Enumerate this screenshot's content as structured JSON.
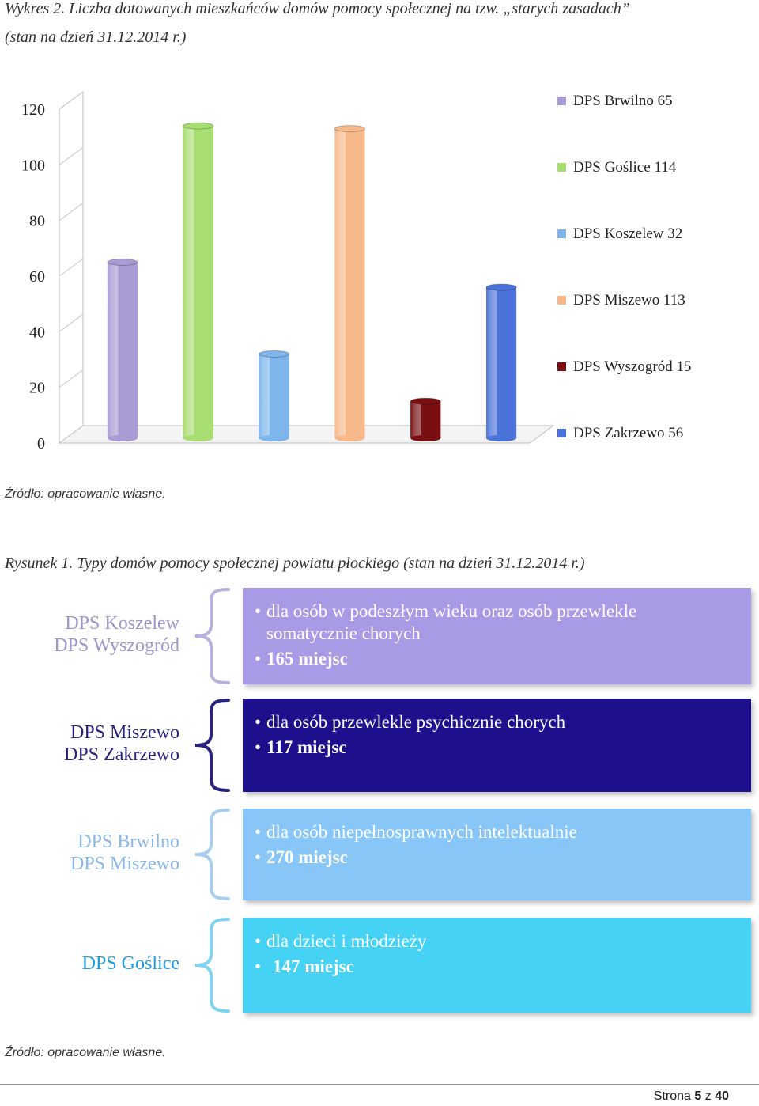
{
  "caption_chart": {
    "line1": "Wykres 2. Liczba dotowanych mieszkańców domów pomocy społecznej na tzw. „starych zasadach”",
    "line2": "(stan na dzień 31.12.2014 r.)"
  },
  "chart_data": {
    "type": "bar",
    "title": "",
    "categories": [
      "DPS Brwilno",
      "DPS Goślice",
      "DPS Koszelew",
      "DPS Miszewo",
      "DPS Wyszogród",
      "DPS Zakrzewo"
    ],
    "values": [
      65,
      114,
      32,
      113,
      15,
      56
    ],
    "colors": [
      "#a99bd4",
      "#a8dd72",
      "#7eb6ec",
      "#f8b98a",
      "#7a0f12",
      "#4a72d9"
    ],
    "ylim": [
      0,
      120
    ],
    "yticks": [
      "0",
      "20",
      "40",
      "60",
      "80",
      "100",
      "120"
    ],
    "legend": [
      "DPS Brwilno 65",
      "DPS Goślice 114",
      "DPS Koszelew 32",
      "DPS Miszewo 113",
      "DPS Wyszogród 15",
      "DPS Zakrzewo 56"
    ],
    "legend_position": "right"
  },
  "source_1": "Źródło: opracowanie własne.",
  "caption_figure": "Rysunek 1. Typy domów pomocy społecznej powiatu płockiego (stan na dzień 31.12.2014 r.)",
  "figure_rows": [
    {
      "names": [
        "DPS Koszelew",
        "DPS Wyszogród"
      ],
      "lines": [
        "dla osób w podeszłym wieku oraz osób przewlekle",
        "somatycznie chorych"
      ],
      "places": "165 miejsc",
      "name_color": "#9f94cc",
      "box_color": "#a99ae6",
      "text_color": "#ffffff",
      "brace_color": "#b9b0dd"
    },
    {
      "names": [
        "DPS Miszewo",
        "DPS Zakrzewo"
      ],
      "lines": [
        "dla osób przewlekle psychicznie chorych"
      ],
      "places": "117 miejsc",
      "name_color": "#2a2280",
      "box_color": "#1e0f8c",
      "text_color": "#ffffff",
      "brace_color": "#2a2280"
    },
    {
      "names": [
        "DPS Brwilno",
        "DPS Miszewo"
      ],
      "lines": [
        "dla osób niepełnosprawnych intelektualnie"
      ],
      "places": "270 miejsc",
      "name_color": "#8ab8e8",
      "box_color": "#88c6f7",
      "text_color": "#ffffff",
      "brace_color": "#a7cdee"
    },
    {
      "names": [
        "DPS Goślice"
      ],
      "lines": [
        "dla dzieci i młodzieży"
      ],
      "places": "147 miejsc",
      "name_color": "#1c9be0",
      "box_color": "#45d2f5",
      "text_color": "#ffffff",
      "brace_color": "#7fd3ee"
    }
  ],
  "source_2": "Źródło: opracowanie własne.",
  "footer": {
    "prefix": "Strona",
    "page": "5",
    "sep": "z",
    "total": "40"
  }
}
